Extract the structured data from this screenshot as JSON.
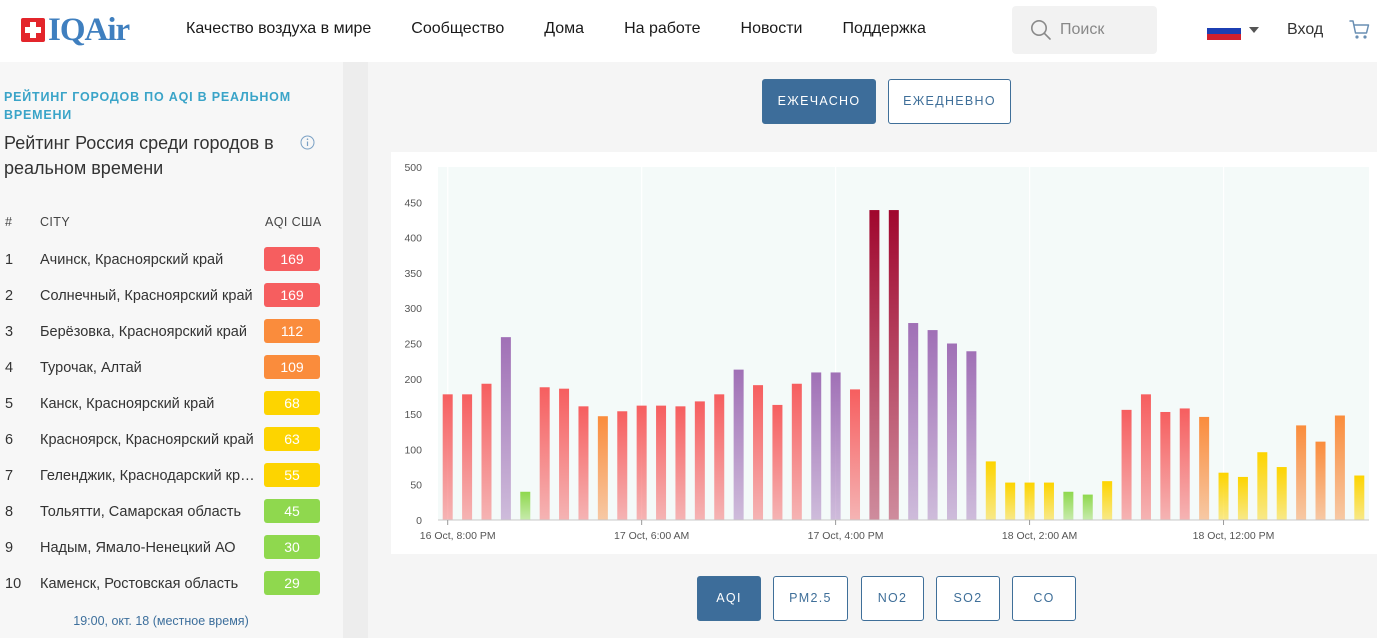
{
  "header": {
    "logo_text": "IQAir",
    "nav": [
      "Качество воздуха в мире",
      "Сообщество",
      "Дома",
      "На работе",
      "Новости",
      "Поддержка"
    ],
    "search_placeholder": "Поиск",
    "login": "Вход",
    "flag_colors": [
      "#ffffff",
      "#1c3fb3",
      "#d0202e"
    ],
    "icons": {
      "search": "search-icon",
      "cart": "cart-icon",
      "flag": "russia-flag-icon",
      "caret": "chevron-down-icon"
    }
  },
  "sidebar": {
    "kicker": "РЕЙТИНГ ГОРОДОВ ПО AQI В РЕАЛЬНОМ ВРЕМЕНИ",
    "title": "Рейтинг Россия среди городов в реальном времени",
    "columns": {
      "rank": "#",
      "city": "CITY",
      "aqi": "AQI США"
    },
    "rows": [
      {
        "rank": "1",
        "city": "Ачинск, Красноярский край",
        "aqi": "169",
        "color": "#f65e5f"
      },
      {
        "rank": "2",
        "city": "Солнечный, Красноярский край",
        "aqi": "169",
        "color": "#f65e5f"
      },
      {
        "rank": "3",
        "city": "Берёзовка, Красноярский край",
        "aqi": "112",
        "color": "#fa8c3c"
      },
      {
        "rank": "4",
        "city": "Турочак, Алтай",
        "aqi": "109",
        "color": "#fa8c3c"
      },
      {
        "rank": "5",
        "city": "Канск, Красноярский край",
        "aqi": "68",
        "color": "#fdd400"
      },
      {
        "rank": "6",
        "city": "Красноярск, Красноярский край",
        "aqi": "63",
        "color": "#fdd400"
      },
      {
        "rank": "7",
        "city": "Геленджик, Краснодарский край",
        "aqi": "55",
        "color": "#fdd400"
      },
      {
        "rank": "8",
        "city": "Тольятти, Самарская область",
        "aqi": "45",
        "color": "#8fd84e"
      },
      {
        "rank": "9",
        "city": "Надым, Ямало-Ненецкий АО",
        "aqi": "30",
        "color": "#8fd84e"
      },
      {
        "rank": "10",
        "city": "Каменск, Ростовская область",
        "aqi": "29",
        "color": "#8fd84e"
      }
    ],
    "timestamp": "19:00, окт. 18 (местное время)"
  },
  "main": {
    "period_buttons": [
      {
        "label": "ЕЖЕЧАСНО",
        "active": true
      },
      {
        "label": "ЕЖЕДНЕВНО",
        "active": false
      }
    ],
    "pollutant_buttons": [
      {
        "label": "AQI",
        "active": true
      },
      {
        "label": "PM2.5",
        "active": false
      },
      {
        "label": "NO2",
        "active": false
      },
      {
        "label": "SO2",
        "active": false
      },
      {
        "label": "CO",
        "active": false
      }
    ]
  },
  "chart_data": {
    "type": "bar",
    "title": "",
    "xlabel": "",
    "ylabel": "",
    "ylim": [
      0,
      500
    ],
    "yticks": [
      0,
      50,
      100,
      150,
      200,
      250,
      300,
      350,
      400,
      450,
      500
    ],
    "grid": true,
    "xtick_labels": [
      {
        "label": "16 Oct, 8:00 PM",
        "index": 0
      },
      {
        "label": "17 Oct, 6:00 AM",
        "index": 10
      },
      {
        "label": "17 Oct, 4:00 PM",
        "index": 20
      },
      {
        "label": "18 Oct, 2:00 AM",
        "index": 30
      },
      {
        "label": "18 Oct, 12:00 PM",
        "index": 40
      }
    ],
    "values": [
      178,
      178,
      193,
      259,
      40,
      188,
      186,
      161,
      147,
      154,
      162,
      162,
      161,
      168,
      178,
      213,
      191,
      163,
      193,
      209,
      209,
      185,
      439,
      439,
      279,
      269,
      250,
      239,
      83,
      53,
      53,
      53,
      40,
      36,
      55,
      156,
      178,
      153,
      158,
      146,
      67,
      61,
      96,
      75,
      134,
      111,
      148,
      63
    ],
    "color_scale": [
      {
        "max": 50,
        "color": "#8fd84e"
      },
      {
        "max": 100,
        "color": "#fdd400"
      },
      {
        "max": 150,
        "color": "#fa8c3c"
      },
      {
        "max": 200,
        "color": "#f65e5f"
      },
      {
        "max": 300,
        "color": "#a070b6"
      },
      {
        "max": 500,
        "color": "#a0062d"
      }
    ]
  }
}
